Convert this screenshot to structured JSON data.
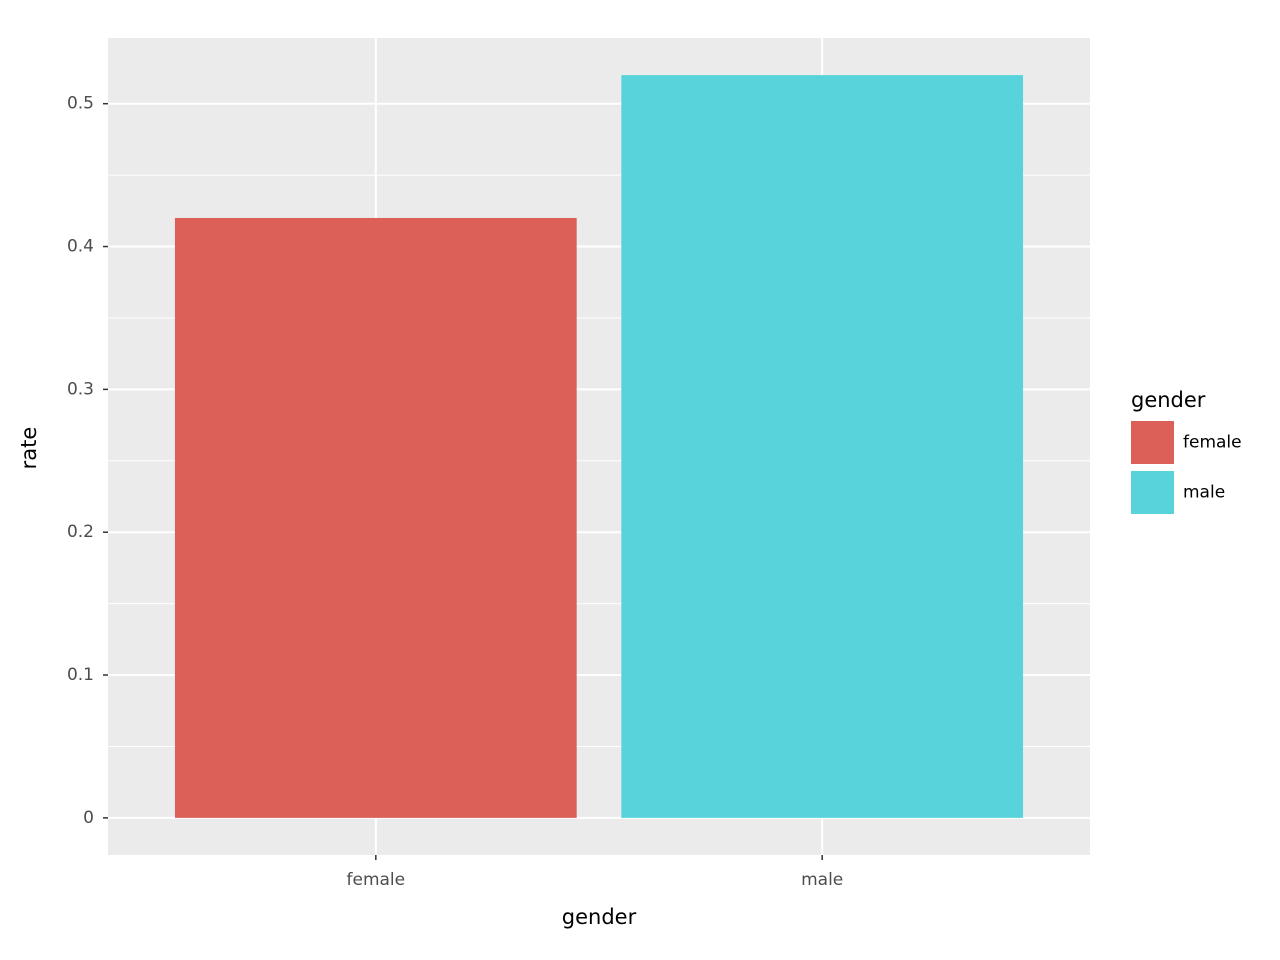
{
  "chart_data": {
    "type": "bar",
    "x_label": "gender",
    "y_label": "rate",
    "categories": [
      "female",
      "male"
    ],
    "values": [
      0.42,
      0.52
    ],
    "colors": [
      "#dc5f58",
      "#58d3db"
    ],
    "legend_title": "gender",
    "legend_position": "right",
    "ylim": [
      -0.026,
      0.546
    ],
    "yticks": [
      0,
      0.1,
      0.2,
      0.3,
      0.4,
      0.5
    ],
    "grid": true
  }
}
